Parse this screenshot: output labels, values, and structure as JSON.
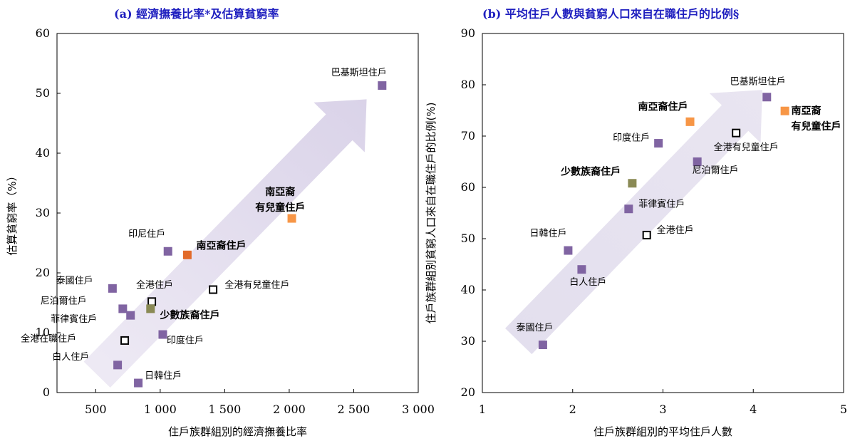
{
  "chart_data": [
    {
      "type": "scatter",
      "title": "(a) 經濟撫養比率*及估算貧窮率",
      "xlabel": "住戶族群組別的經濟撫養比率",
      "ylabel": "估算貧窮率（%）",
      "xlim": [
        200,
        3000
      ],
      "ylim": [
        0,
        60
      ],
      "xticks": [
        500,
        1000,
        1500,
        2000,
        2500,
        3000
      ],
      "xtick_labels": [
        "500",
        "1 000",
        "1 500",
        "2 000",
        "2 500",
        "3 000"
      ],
      "yticks": [
        0,
        10,
        20,
        30,
        40,
        50,
        60
      ],
      "ytick_labels": [
        "0",
        "10",
        "20",
        "30",
        "40",
        "50",
        "60"
      ],
      "grid": false,
      "arrow_from": [
        510,
        3
      ],
      "arrow_to": [
        2600,
        49
      ],
      "points": [
        {
          "label": "巴基斯坦住戶",
          "x": 2720,
          "y": 51.3,
          "group": "ethnic",
          "color": "#8064a2",
          "filled": true,
          "bold": false,
          "lx": 2540,
          "ly": 53,
          "anchor": "middle"
        },
        {
          "label": "南亞裔有兒童住戶",
          "x": 2020,
          "y": 29.1,
          "group": "south-asian-children",
          "color": "#f79646",
          "filled": true,
          "bold": true,
          "lines": [
            "南亞裔",
            "有兒童住戶"
          ],
          "lx": 1930,
          "ly": 33,
          "anchor": "middle"
        },
        {
          "label": "印尼住戶",
          "x": 1060,
          "y": 23.6,
          "group": "ethnic",
          "color": "#8064a2",
          "filled": true,
          "bold": false,
          "lx": 1040,
          "ly": 26,
          "anchor": "end"
        },
        {
          "label": "南亞裔住戶",
          "x": 1210,
          "y": 23.0,
          "group": "south-asian",
          "color": "#e26b2a",
          "filled": true,
          "bold": true,
          "lx": 1280,
          "ly": 24,
          "anchor": "start"
        },
        {
          "label": "泰國住戶",
          "x": 630,
          "y": 17.4,
          "group": "ethnic",
          "color": "#8064a2",
          "filled": true,
          "bold": false,
          "lx": 480,
          "ly": 18.2,
          "anchor": "end"
        },
        {
          "label": "全港住戶",
          "x": 935,
          "y": 15.2,
          "group": "overall",
          "color": "#000000",
          "filled": false,
          "bold": false,
          "lx": 1100,
          "ly": 17.5,
          "anchor": "end"
        },
        {
          "label": "全港有兒童住戶",
          "x": 1410,
          "y": 17.2,
          "group": "overall",
          "color": "#000000",
          "filled": false,
          "bold": false,
          "lx": 1500,
          "ly": 17.5,
          "anchor": "start"
        },
        {
          "label": "尼泊爾住戶",
          "x": 710,
          "y": 14.0,
          "group": "ethnic",
          "color": "#8064a2",
          "filled": true,
          "bold": false,
          "lx": 430,
          "ly": 14.8,
          "anchor": "end"
        },
        {
          "label": "少數族裔住戶",
          "x": 925,
          "y": 14.0,
          "group": "ethnic-minority",
          "color": "#8a8a55",
          "filled": true,
          "bold": true,
          "lx": 1230,
          "ly": 12.4,
          "anchor": "middle"
        },
        {
          "label": "菲律賓住戶",
          "x": 770,
          "y": 12.9,
          "group": "ethnic",
          "color": "#8064a2",
          "filled": true,
          "bold": false,
          "lx": 510,
          "ly": 11.8,
          "anchor": "end"
        },
        {
          "label": "印度住戶",
          "x": 1020,
          "y": 9.7,
          "group": "ethnic",
          "color": "#8064a2",
          "filled": true,
          "bold": false,
          "lx": 1050,
          "ly": 8.2,
          "anchor": "start"
        },
        {
          "label": "全港在職住戶",
          "x": 725,
          "y": 8.7,
          "group": "overall",
          "color": "#000000",
          "filled": false,
          "bold": false,
          "lx": 350,
          "ly": 8.5,
          "anchor": "end"
        },
        {
          "label": "白人住戶",
          "x": 670,
          "y": 4.6,
          "group": "ethnic",
          "color": "#8064a2",
          "filled": true,
          "bold": false,
          "lx": 450,
          "ly": 5.5,
          "anchor": "end"
        },
        {
          "label": "日韓住戶",
          "x": 830,
          "y": 1.6,
          "group": "ethnic",
          "color": "#8064a2",
          "filled": true,
          "bold": false,
          "lx": 880,
          "ly": 2.3,
          "anchor": "start"
        }
      ]
    },
    {
      "type": "scatter",
      "title": "(b) 平均住戶人數與貧窮人口來自在職住戶的比例§",
      "xlabel": "住戶族群組別的平均住戶人數",
      "ylabel": "住戶族群組別貧窮人口來自在職住戶的比例(%)",
      "xlim": [
        1,
        5
      ],
      "ylim": [
        20,
        90
      ],
      "xticks": [
        1,
        2,
        3,
        4,
        5
      ],
      "xtick_labels": [
        "1",
        "2",
        "3",
        "4",
        "5"
      ],
      "yticks": [
        20,
        30,
        40,
        50,
        60,
        70,
        80,
        90
      ],
      "ytick_labels": [
        "20",
        "30",
        "40",
        "50",
        "60",
        "70",
        "80",
        "90"
      ],
      "grid": false,
      "arrow_from": [
        1.4,
        30
      ],
      "arrow_to": [
        4.1,
        79
      ],
      "points": [
        {
          "label": "巴基斯坦住戶",
          "x": 4.15,
          "y": 77.6,
          "group": "ethnic",
          "color": "#8064a2",
          "filled": true,
          "bold": false,
          "lx": 4.05,
          "ly": 80.1,
          "anchor": "middle"
        },
        {
          "label": "南亞裔有兒童住戶",
          "x": 4.35,
          "y": 74.9,
          "group": "south-asian-children",
          "color": "#f79646",
          "filled": true,
          "bold": true,
          "lines": [
            "南亞裔",
            "有兒童住戶"
          ],
          "lx": 4.42,
          "ly": 74.3,
          "anchor": "start"
        },
        {
          "label": "南亞裔住戶",
          "x": 3.3,
          "y": 72.8,
          "group": "south-asian",
          "color": "#f79646",
          "filled": true,
          "bold": true,
          "lx": 3.0,
          "ly": 75.1,
          "anchor": "middle"
        },
        {
          "label": "全港有兒童住戶",
          "x": 3.81,
          "y": 70.6,
          "group": "overall",
          "color": "#000000",
          "filled": false,
          "bold": false,
          "lx": 3.92,
          "ly": 67.2,
          "anchor": "middle"
        },
        {
          "label": "印度住戶",
          "x": 2.95,
          "y": 68.6,
          "group": "ethnic",
          "color": "#8064a2",
          "filled": true,
          "bold": false,
          "lx": 2.65,
          "ly": 69.1,
          "anchor": "middle"
        },
        {
          "label": "尼泊爾住戶",
          "x": 3.38,
          "y": 65.0,
          "group": "ethnic",
          "color": "#8064a2",
          "filled": true,
          "bold": false,
          "lx": 3.58,
          "ly": 62.8,
          "anchor": "middle"
        },
        {
          "label": "少數族裔住戶",
          "x": 2.66,
          "y": 60.8,
          "group": "ethnic-minority",
          "color": "#8a8a55",
          "filled": true,
          "bold": true,
          "lx": 2.2,
          "ly": 62.4,
          "anchor": "middle"
        },
        {
          "label": "菲律賓住戶",
          "x": 2.62,
          "y": 55.8,
          "group": "ethnic",
          "color": "#8064a2",
          "filled": true,
          "bold": false,
          "lx": 2.73,
          "ly": 56.2,
          "anchor": "start"
        },
        {
          "label": "全港住戶",
          "x": 2.82,
          "y": 50.7,
          "group": "overall",
          "color": "#000000",
          "filled": false,
          "bold": false,
          "lx": 2.93,
          "ly": 51.1,
          "anchor": "start"
        },
        {
          "label": "日韓住戶",
          "x": 1.95,
          "y": 47.7,
          "group": "ethnic",
          "color": "#8064a2",
          "filled": true,
          "bold": false,
          "lx": 1.73,
          "ly": 50.5,
          "anchor": "middle"
        },
        {
          "label": "白人住戶",
          "x": 2.1,
          "y": 44.0,
          "group": "ethnic",
          "color": "#8064a2",
          "filled": true,
          "bold": false,
          "lx": 2.17,
          "ly": 41.0,
          "anchor": "middle"
        },
        {
          "label": "泰國住戶",
          "x": 1.67,
          "y": 29.3,
          "group": "ethnic",
          "color": "#8064a2",
          "filled": true,
          "bold": false,
          "lx": 1.58,
          "ly": 32.1,
          "anchor": "middle"
        }
      ]
    }
  ]
}
